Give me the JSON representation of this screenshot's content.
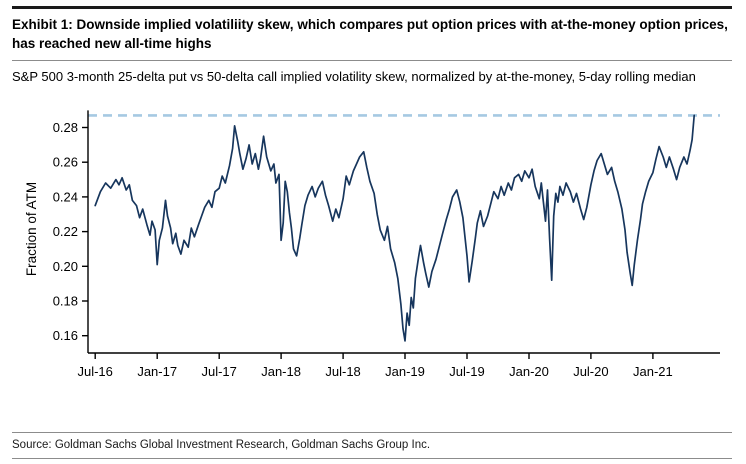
{
  "exhibit": {
    "title": "Exhibit 1: Downside implied volatiliity skew, which compares put option prices with at-the-money option prices, has reached new all-time highs",
    "subtitle": "S&P 500 3-month 25-delta put vs 50-delta call implied volatility skew, normalized by at-the-money, 5-day rolling median",
    "source": "Source: Goldman Sachs Global Investment Research, Goldman Sachs Group Inc."
  },
  "colors": {
    "line": "#17365d",
    "reference_dashed": "#a6c9e2",
    "axis": "#000000",
    "top_rule": "#1a1a1a"
  },
  "chart_data": {
    "type": "line",
    "title": "S&P 500 3-month 25-delta put vs 50-delta call implied volatility skew, normalized by at-the-money, 5-day rolling median",
    "xlabel": "",
    "ylabel": "Fraction of ATM",
    "x_unit": "months since Jul-2016",
    "xlim": [
      -0.7,
      60.5
    ],
    "ylim": [
      0.15,
      0.293
    ],
    "grid": false,
    "legend": "none",
    "y_ticks": [
      0.16,
      0.18,
      0.2,
      0.22,
      0.24,
      0.26,
      0.28
    ],
    "x_ticks": [
      {
        "x": 0,
        "label": "Jul-16"
      },
      {
        "x": 6,
        "label": "Jan-17"
      },
      {
        "x": 12,
        "label": "Jul-17"
      },
      {
        "x": 18,
        "label": "Jan-18"
      },
      {
        "x": 24,
        "label": "Jul-18"
      },
      {
        "x": 30,
        "label": "Jan-19"
      },
      {
        "x": 36,
        "label": "Jul-19"
      },
      {
        "x": 42,
        "label": "Jan-20"
      },
      {
        "x": 48,
        "label": "Jul-20"
      },
      {
        "x": 54,
        "label": "Jan-21"
      }
    ],
    "reference_line": {
      "y": 0.287,
      "style": "dashed",
      "color": "#a6c9e2",
      "meaning": "new all-time high level"
    },
    "series": [
      {
        "name": "S&P 500 3m 25-delta put vs 50-delta call skew (fraction of ATM), 5-day rolling median",
        "color": "#17365d",
        "points": [
          [
            0,
            0.235
          ],
          [
            0.5,
            0.243
          ],
          [
            1,
            0.248
          ],
          [
            1.5,
            0.245
          ],
          [
            2,
            0.25
          ],
          [
            2.3,
            0.247
          ],
          [
            2.6,
            0.251
          ],
          [
            3,
            0.244
          ],
          [
            3.3,
            0.247
          ],
          [
            3.6,
            0.238
          ],
          [
            4,
            0.235
          ],
          [
            4.3,
            0.228
          ],
          [
            4.6,
            0.233
          ],
          [
            5,
            0.224
          ],
          [
            5.3,
            0.218
          ],
          [
            5.5,
            0.226
          ],
          [
            5.8,
            0.221
          ],
          [
            6,
            0.201
          ],
          [
            6.2,
            0.215
          ],
          [
            6.5,
            0.222
          ],
          [
            6.8,
            0.238
          ],
          [
            7,
            0.229
          ],
          [
            7.3,
            0.222
          ],
          [
            7.5,
            0.213
          ],
          [
            7.8,
            0.219
          ],
          [
            8,
            0.212
          ],
          [
            8.3,
            0.207
          ],
          [
            8.6,
            0.215
          ],
          [
            9,
            0.211
          ],
          [
            9.3,
            0.222
          ],
          [
            9.6,
            0.217
          ],
          [
            10,
            0.224
          ],
          [
            10.3,
            0.229
          ],
          [
            10.6,
            0.234
          ],
          [
            11,
            0.238
          ],
          [
            11.3,
            0.234
          ],
          [
            11.6,
            0.243
          ],
          [
            12,
            0.245
          ],
          [
            12.3,
            0.252
          ],
          [
            12.6,
            0.248
          ],
          [
            13,
            0.258
          ],
          [
            13.3,
            0.268
          ],
          [
            13.5,
            0.281
          ],
          [
            13.8,
            0.272
          ],
          [
            14,
            0.265
          ],
          [
            14.3,
            0.256
          ],
          [
            14.6,
            0.262
          ],
          [
            14.9,
            0.27
          ],
          [
            15.2,
            0.259
          ],
          [
            15.5,
            0.265
          ],
          [
            15.8,
            0.256
          ],
          [
            16,
            0.262
          ],
          [
            16.3,
            0.275
          ],
          [
            16.6,
            0.263
          ],
          [
            17,
            0.255
          ],
          [
            17.3,
            0.259
          ],
          [
            17.5,
            0.248
          ],
          [
            17.8,
            0.253
          ],
          [
            18,
            0.215
          ],
          [
            18.2,
            0.225
          ],
          [
            18.4,
            0.249
          ],
          [
            18.6,
            0.243
          ],
          [
            18.8,
            0.231
          ],
          [
            19,
            0.222
          ],
          [
            19.2,
            0.21
          ],
          [
            19.5,
            0.206
          ],
          [
            19.8,
            0.216
          ],
          [
            20,
            0.224
          ],
          [
            20.3,
            0.235
          ],
          [
            20.6,
            0.241
          ],
          [
            21,
            0.246
          ],
          [
            21.3,
            0.24
          ],
          [
            21.6,
            0.245
          ],
          [
            22,
            0.249
          ],
          [
            22.3,
            0.241
          ],
          [
            22.6,
            0.235
          ],
          [
            23,
            0.226
          ],
          [
            23.3,
            0.233
          ],
          [
            23.6,
            0.228
          ],
          [
            24,
            0.239
          ],
          [
            24.3,
            0.252
          ],
          [
            24.6,
            0.247
          ],
          [
            25,
            0.255
          ],
          [
            25.3,
            0.259
          ],
          [
            25.6,
            0.263
          ],
          [
            26,
            0.266
          ],
          [
            26.3,
            0.257
          ],
          [
            26.6,
            0.249
          ],
          [
            27,
            0.242
          ],
          [
            27.3,
            0.23
          ],
          [
            27.6,
            0.221
          ],
          [
            28,
            0.215
          ],
          [
            28.3,
            0.223
          ],
          [
            28.6,
            0.21
          ],
          [
            29,
            0.202
          ],
          [
            29.3,
            0.193
          ],
          [
            29.6,
            0.178
          ],
          [
            29.8,
            0.164
          ],
          [
            30,
            0.157
          ],
          [
            30.2,
            0.173
          ],
          [
            30.4,
            0.166
          ],
          [
            30.6,
            0.182
          ],
          [
            30.8,
            0.176
          ],
          [
            31,
            0.193
          ],
          [
            31.3,
            0.205
          ],
          [
            31.5,
            0.212
          ],
          [
            31.8,
            0.202
          ],
          [
            32,
            0.196
          ],
          [
            32.3,
            0.188
          ],
          [
            32.6,
            0.197
          ],
          [
            33,
            0.204
          ],
          [
            33.3,
            0.211
          ],
          [
            33.6,
            0.218
          ],
          [
            34,
            0.227
          ],
          [
            34.3,
            0.233
          ],
          [
            34.6,
            0.24
          ],
          [
            35,
            0.244
          ],
          [
            35.3,
            0.237
          ],
          [
            35.6,
            0.228
          ],
          [
            36,
            0.206
          ],
          [
            36.2,
            0.191
          ],
          [
            36.5,
            0.203
          ],
          [
            36.8,
            0.216
          ],
          [
            37,
            0.225
          ],
          [
            37.3,
            0.232
          ],
          [
            37.6,
            0.223
          ],
          [
            38,
            0.229
          ],
          [
            38.3,
            0.236
          ],
          [
            38.6,
            0.243
          ],
          [
            39,
            0.239
          ],
          [
            39.3,
            0.246
          ],
          [
            39.6,
            0.241
          ],
          [
            40,
            0.248
          ],
          [
            40.3,
            0.244
          ],
          [
            40.6,
            0.251
          ],
          [
            41,
            0.253
          ],
          [
            41.3,
            0.249
          ],
          [
            41.6,
            0.255
          ],
          [
            42,
            0.251
          ],
          [
            42.3,
            0.256
          ],
          [
            42.6,
            0.246
          ],
          [
            43,
            0.239
          ],
          [
            43.2,
            0.248
          ],
          [
            43.4,
            0.237
          ],
          [
            43.6,
            0.226
          ],
          [
            43.8,
            0.244
          ],
          [
            44,
            0.216
          ],
          [
            44.2,
            0.192
          ],
          [
            44.4,
            0.229
          ],
          [
            44.6,
            0.242
          ],
          [
            44.8,
            0.237
          ],
          [
            45,
            0.246
          ],
          [
            45.3,
            0.241
          ],
          [
            45.6,
            0.248
          ],
          [
            46,
            0.243
          ],
          [
            46.3,
            0.237
          ],
          [
            46.6,
            0.242
          ],
          [
            47,
            0.233
          ],
          [
            47.3,
            0.227
          ],
          [
            47.6,
            0.234
          ],
          [
            48,
            0.247
          ],
          [
            48.3,
            0.255
          ],
          [
            48.6,
            0.261
          ],
          [
            49,
            0.265
          ],
          [
            49.3,
            0.259
          ],
          [
            49.6,
            0.253
          ],
          [
            50,
            0.257
          ],
          [
            50.3,
            0.249
          ],
          [
            50.6,
            0.243
          ],
          [
            51,
            0.233
          ],
          [
            51.3,
            0.221
          ],
          [
            51.5,
            0.208
          ],
          [
            51.8,
            0.196
          ],
          [
            52,
            0.189
          ],
          [
            52.2,
            0.201
          ],
          [
            52.5,
            0.215
          ],
          [
            52.8,
            0.227
          ],
          [
            53,
            0.236
          ],
          [
            53.3,
            0.243
          ],
          [
            53.6,
            0.249
          ],
          [
            54,
            0.254
          ],
          [
            54.3,
            0.262
          ],
          [
            54.6,
            0.269
          ],
          [
            55,
            0.263
          ],
          [
            55.3,
            0.257
          ],
          [
            55.6,
            0.263
          ],
          [
            56,
            0.256
          ],
          [
            56.3,
            0.25
          ],
          [
            56.6,
            0.257
          ],
          [
            57,
            0.263
          ],
          [
            57.3,
            0.259
          ],
          [
            57.6,
            0.267
          ],
          [
            57.8,
            0.273
          ],
          [
            58,
            0.287
          ]
        ]
      }
    ]
  }
}
